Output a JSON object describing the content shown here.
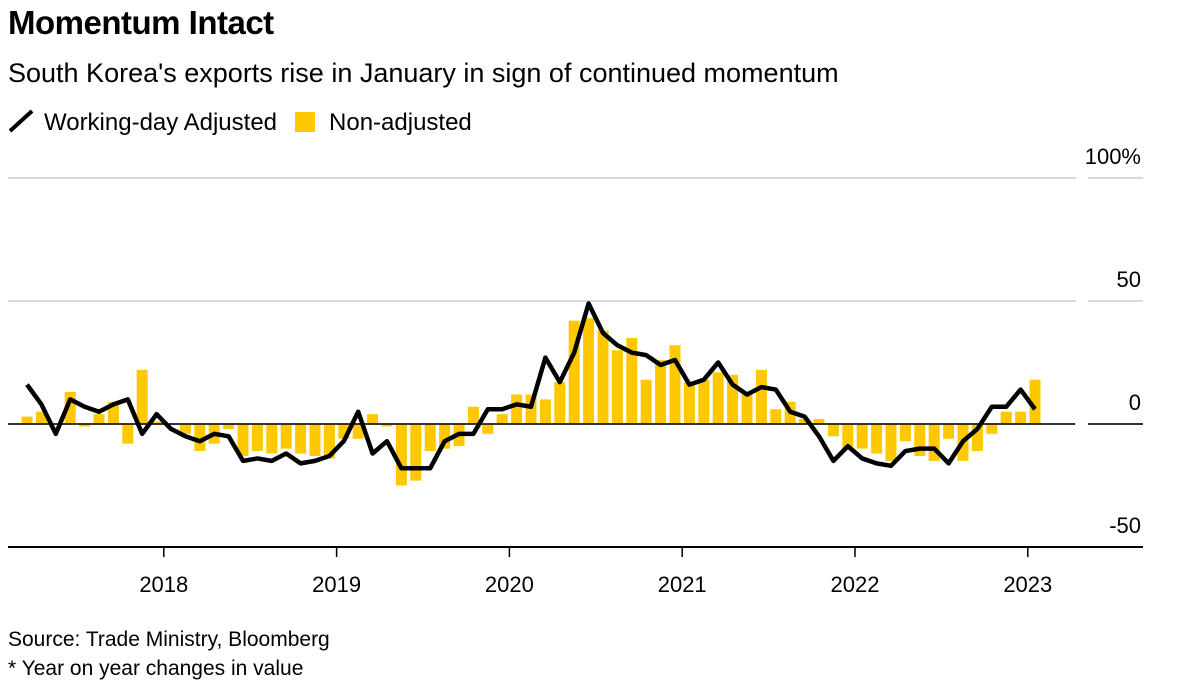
{
  "chart_data": {
    "type": "bar-line",
    "title": "Momentum Intact",
    "subtitle": "South Korea's exports rise in January in sign of continued momentum",
    "source": "Source: Trade Ministry, Bloomberg",
    "note": "* Year on year changes in value",
    "categories": [
      null,
      null,
      null,
      null,
      null,
      null,
      null,
      null,
      null,
      null,
      "2018",
      null,
      null,
      null,
      null,
      null,
      null,
      null,
      null,
      null,
      null,
      null,
      "2019",
      null,
      null,
      null,
      null,
      null,
      null,
      null,
      null,
      null,
      null,
      null,
      "2020",
      null,
      null,
      null,
      null,
      null,
      null,
      null,
      null,
      null,
      null,
      null,
      "2021",
      null,
      null,
      null,
      null,
      null,
      null,
      null,
      null,
      null,
      null,
      null,
      "2022",
      null,
      null,
      null,
      null,
      null,
      null,
      null,
      null,
      null,
      null,
      null,
      "2023"
    ],
    "series": [
      {
        "name": "Working-day Adjusted",
        "kind": "line",
        "color": "#000000",
        "values": [
          16,
          8,
          -4,
          10,
          7,
          5,
          8,
          10,
          -4,
          4,
          -2,
          -5,
          -7,
          -4,
          -5,
          -15,
          -14,
          -15,
          -12,
          -16,
          -15,
          -13,
          -7,
          5,
          -12,
          -7,
          -18,
          -18,
          -18,
          -7,
          -4,
          -4,
          6,
          6,
          8,
          7,
          27,
          17,
          29,
          49,
          37,
          32,
          29,
          28,
          24,
          26,
          16,
          18,
          25,
          16,
          12,
          15,
          14,
          5,
          3,
          -5,
          -15,
          -9,
          -14,
          -16,
          -17,
          -11,
          -10,
          -10,
          -16,
          -7,
          -2,
          7,
          7,
          14,
          6
        ]
      },
      {
        "name": "Non-adjusted",
        "kind": "bar",
        "color": "#ffc800",
        "values": [
          3,
          5,
          0,
          13,
          -1,
          4,
          9,
          -8,
          22,
          1,
          0,
          -4,
          -11,
          -8,
          -2,
          -13,
          -11,
          -12,
          -10,
          -12,
          -13,
          -14,
          -6,
          -6,
          4,
          -1,
          -25,
          -23,
          -11,
          -10,
          -9,
          7,
          -4,
          4,
          12,
          12,
          10,
          17,
          42,
          43,
          38,
          30,
          35,
          18,
          26,
          32,
          17,
          18,
          21,
          20,
          13,
          22,
          6,
          9,
          2,
          2,
          -5,
          -10,
          -10,
          -12,
          -15,
          -7,
          -13,
          -15,
          -6,
          -15,
          -11,
          -4,
          5,
          5,
          18
        ]
      }
    ],
    "ylim": [
      -50,
      100
    ],
    "yticks": [
      -50,
      0,
      50,
      {
        "value": 100,
        "label": "100%"
      }
    ],
    "grid": true
  }
}
